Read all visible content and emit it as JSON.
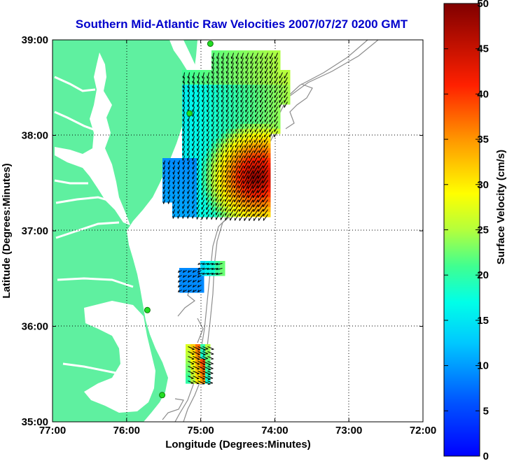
{
  "title": "Southern Mid-Atlantic Raw Velocities 2007/07/27 0200 GMT",
  "map": {
    "xlabel": "Longitude (Degrees:Minutes)",
    "ylabel": "Latitude (Degrees:Minutes)",
    "x_ticks": [
      {
        "value": -77,
        "label": "77:00"
      },
      {
        "value": -76,
        "label": "76:00"
      },
      {
        "value": -75,
        "label": "75:00"
      },
      {
        "value": -74,
        "label": "74:00"
      },
      {
        "value": -73,
        "label": "73:00"
      },
      {
        "value": -72,
        "label": "72:00"
      }
    ],
    "y_ticks": [
      {
        "value": 35,
        "label": "35:00"
      },
      {
        "value": 36,
        "label": "36:00"
      },
      {
        "value": 37,
        "label": "37:00"
      },
      {
        "value": 38,
        "label": "38:00"
      },
      {
        "value": 39,
        "label": "39:00"
      }
    ],
    "xlim": [
      -77,
      -72
    ],
    "ylim": [
      35,
      39
    ],
    "grid": "dotted",
    "colors": {
      "land": "#5ff0a0",
      "bathymetry": "#8c8c8c",
      "station": "#22dd22",
      "vectors": "#000000"
    },
    "stations": [
      {
        "lon": -74.87,
        "lat": 38.96
      },
      {
        "lon": -75.15,
        "lat": 38.23
      },
      {
        "lon": -75.72,
        "lat": 36.17
      },
      {
        "lon": -75.52,
        "lat": 35.28
      }
    ]
  },
  "colorbar": {
    "label": "Surface Velocity (cm/s)",
    "min": 0,
    "max": 50,
    "ticks": [
      {
        "value": 0,
        "label": "0"
      },
      {
        "value": 5,
        "label": "5"
      },
      {
        "value": 10,
        "label": "10"
      },
      {
        "value": 15,
        "label": "15"
      },
      {
        "value": 20,
        "label": "20"
      },
      {
        "value": 25,
        "label": "25"
      },
      {
        "value": 30,
        "label": "30"
      },
      {
        "value": 35,
        "label": "35"
      },
      {
        "value": 40,
        "label": "40"
      },
      {
        "value": 45,
        "label": "45"
      },
      {
        "value": 50,
        "label": "50"
      }
    ]
  }
}
